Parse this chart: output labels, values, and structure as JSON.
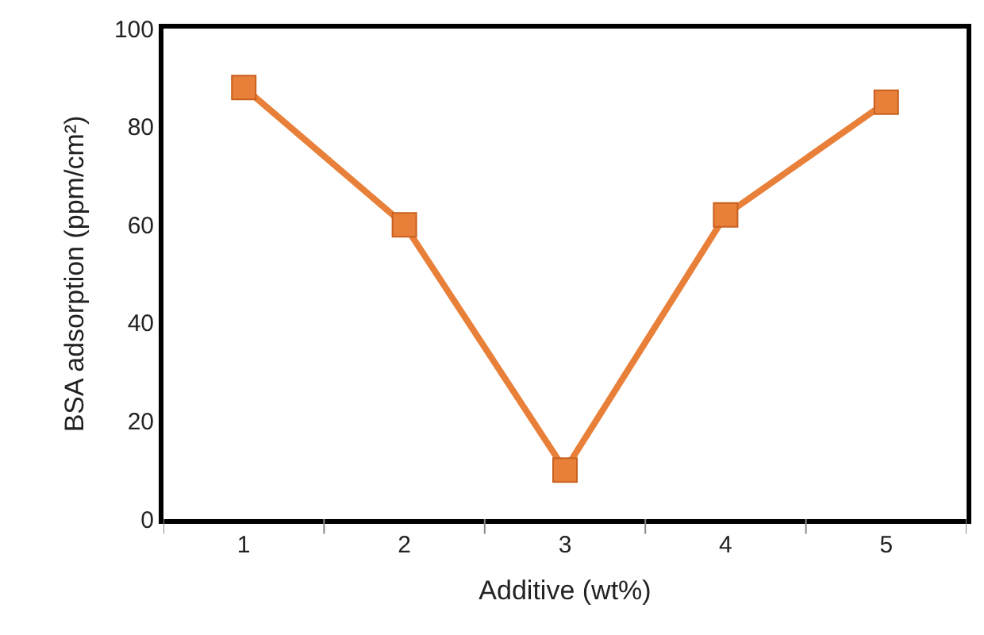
{
  "chart_data": {
    "type": "line",
    "categories": [
      "1",
      "2",
      "3",
      "4",
      "5"
    ],
    "series": [
      {
        "color": "#e8803a",
        "values": [
          88,
          60,
          10,
          62,
          85
        ]
      }
    ],
    "xlabel": "Additive (wt%)",
    "ylabel": "BSA adsorption (ppm/cm²)",
    "ylim": [
      0,
      100
    ],
    "yticks": [
      0,
      20,
      40,
      60,
      80,
      100
    ],
    "legend": false,
    "marker": "square",
    "line_style": "solid"
  }
}
